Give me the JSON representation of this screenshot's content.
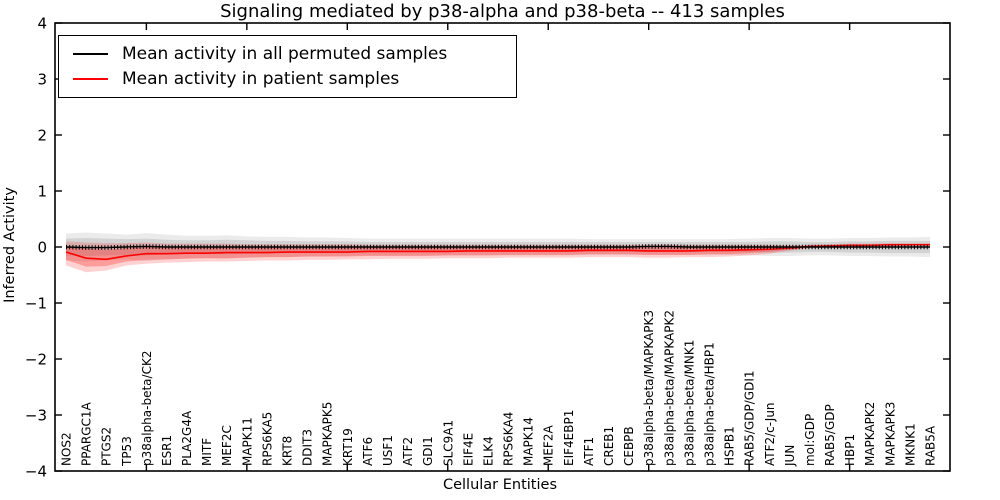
{
  "chart_data": {
    "type": "line",
    "title": "Signaling mediated by p38-alpha and p38-beta -- 413 samples",
    "xlabel": "Cellular Entities",
    "ylabel": "Inferred Activity",
    "ylim": [
      -4,
      4
    ],
    "grid": false,
    "legend_position": "upper left",
    "y_ticks": [
      {
        "value": 4,
        "label": "4"
      },
      {
        "value": 3,
        "label": "3"
      },
      {
        "value": 2,
        "label": "2"
      },
      {
        "value": 1,
        "label": "1"
      },
      {
        "value": 0,
        "label": "0"
      },
      {
        "value": -1,
        "label": "−1"
      },
      {
        "value": -2,
        "label": "−2"
      },
      {
        "value": -3,
        "label": "−3"
      },
      {
        "value": -4,
        "label": "−4"
      }
    ],
    "x_major_tick_indices": [
      4,
      9,
      14,
      19,
      24,
      29,
      34,
      39
    ],
    "categories": [
      "NOS2",
      "PPARGC1A",
      "PTGS2",
      "TP53",
      "p38alpha-beta/CK2",
      "ESR1",
      "PLA2G4A",
      "MITF",
      "MEF2C",
      "MAPK11",
      "RPS6KA5",
      "KRT8",
      "DDIT3",
      "MAPKAPK5",
      "KRT19",
      "ATF6",
      "USF1",
      "ATF2",
      "GDI1",
      "SLC9A1",
      "EIF4E",
      "ELK4",
      "RPS6KA4",
      "MAPK14",
      "MEF2A",
      "EIF4EBP1",
      "ATF1",
      "CREB1",
      "CEBPB",
      "p38alpha-beta/MAPKAPK3",
      "p38alpha-beta/MAPKAPK2",
      "p38alpha-beta/MNK1",
      "p38alpha-beta/HBP1",
      "HSPB1",
      "RAB5/GDP/GDI1",
      "ATF2/c-Jun",
      "JUN",
      "mol:GDP",
      "RAB5/GDP",
      "HBP1",
      "MAPKAPK2",
      "MAPKAPK3",
      "MKNK1",
      "RAB5A"
    ],
    "series": [
      {
        "name": "Mean activity in all permuted samples",
        "color": "#000000",
        "style": "line-with-dense-tick-markers",
        "values": [
          0.0,
          -0.01,
          -0.01,
          0.0,
          0.01,
          0.0,
          0.0,
          0.0,
          0.0,
          0.0,
          0.0,
          0.0,
          0.0,
          0.0,
          0.0,
          0.0,
          0.0,
          0.0,
          0.0,
          0.0,
          0.0,
          0.0,
          0.0,
          0.0,
          0.0,
          0.0,
          0.0,
          0.0,
          0.0,
          0.01,
          0.01,
          0.0,
          0.0,
          0.0,
          0.0,
          0.0,
          0.0,
          0.0,
          0.0,
          0.0,
          0.0,
          0.0,
          0.0,
          0.0
        ]
      },
      {
        "name": "Mean activity in patient samples",
        "color": "#ff0000",
        "style": "line",
        "values": [
          -0.09,
          -0.2,
          -0.22,
          -0.16,
          -0.12,
          -0.12,
          -0.11,
          -0.11,
          -0.1,
          -0.1,
          -0.1,
          -0.09,
          -0.09,
          -0.09,
          -0.09,
          -0.08,
          -0.08,
          -0.08,
          -0.08,
          -0.08,
          -0.07,
          -0.07,
          -0.07,
          -0.07,
          -0.07,
          -0.07,
          -0.06,
          -0.06,
          -0.06,
          -0.07,
          -0.07,
          -0.07,
          -0.06,
          -0.06,
          -0.05,
          -0.04,
          -0.02,
          0.01,
          0.02,
          0.03,
          0.03,
          0.04,
          0.04,
          0.04
        ]
      }
    ],
    "bands": [
      {
        "name": "permuted-outer",
        "color": "#000000",
        "opacity": 0.08,
        "upper": [
          0.24,
          0.26,
          0.24,
          0.22,
          0.25,
          0.22,
          0.2,
          0.2,
          0.21,
          0.19,
          0.18,
          0.18,
          0.17,
          0.17,
          0.16,
          0.15,
          0.15,
          0.15,
          0.15,
          0.15,
          0.15,
          0.15,
          0.15,
          0.15,
          0.15,
          0.15,
          0.14,
          0.14,
          0.14,
          0.14,
          0.14,
          0.14,
          0.14,
          0.14,
          0.15,
          0.16,
          0.16,
          0.15,
          0.15,
          0.16,
          0.16,
          0.17,
          0.17,
          0.18
        ],
        "lower": [
          -0.24,
          -0.26,
          -0.24,
          -0.22,
          -0.25,
          -0.22,
          -0.2,
          -0.2,
          -0.21,
          -0.19,
          -0.18,
          -0.18,
          -0.17,
          -0.17,
          -0.16,
          -0.15,
          -0.15,
          -0.15,
          -0.15,
          -0.15,
          -0.15,
          -0.15,
          -0.15,
          -0.15,
          -0.15,
          -0.15,
          -0.14,
          -0.14,
          -0.14,
          -0.14,
          -0.14,
          -0.14,
          -0.14,
          -0.14,
          -0.15,
          -0.16,
          -0.16,
          -0.15,
          -0.15,
          -0.16,
          -0.16,
          -0.17,
          -0.17,
          -0.18
        ]
      },
      {
        "name": "permuted-inner",
        "color": "#000000",
        "opacity": 0.1,
        "upper": [
          0.15,
          0.16,
          0.15,
          0.14,
          0.15,
          0.13,
          0.12,
          0.12,
          0.13,
          0.12,
          0.11,
          0.11,
          0.1,
          0.1,
          0.1,
          0.09,
          0.09,
          0.09,
          0.09,
          0.09,
          0.09,
          0.09,
          0.09,
          0.09,
          0.09,
          0.09,
          0.09,
          0.09,
          0.09,
          0.09,
          0.09,
          0.09,
          0.09,
          0.09,
          0.09,
          0.1,
          0.1,
          0.09,
          0.09,
          0.1,
          0.1,
          0.11,
          0.11,
          0.11
        ],
        "lower": [
          -0.15,
          -0.16,
          -0.15,
          -0.14,
          -0.15,
          -0.13,
          -0.12,
          -0.12,
          -0.13,
          -0.12,
          -0.11,
          -0.11,
          -0.1,
          -0.1,
          -0.1,
          -0.09,
          -0.09,
          -0.09,
          -0.09,
          -0.09,
          -0.09,
          -0.09,
          -0.09,
          -0.09,
          -0.09,
          -0.09,
          -0.09,
          -0.09,
          -0.09,
          -0.09,
          -0.09,
          -0.09,
          -0.09,
          -0.09,
          -0.09,
          -0.1,
          -0.1,
          -0.09,
          -0.09,
          -0.1,
          -0.1,
          -0.11,
          -0.11,
          -0.11
        ]
      },
      {
        "name": "patient-outer",
        "color": "#ff0000",
        "opacity": 0.18,
        "upper": [
          0.1,
          0.08,
          0.07,
          0.07,
          0.08,
          0.06,
          0.06,
          0.06,
          0.06,
          0.05,
          0.05,
          0.05,
          0.05,
          0.05,
          0.05,
          0.04,
          0.04,
          0.04,
          0.04,
          0.04,
          0.04,
          0.04,
          0.04,
          0.04,
          0.04,
          0.04,
          0.04,
          0.04,
          0.04,
          0.04,
          0.04,
          0.04,
          0.04,
          0.04,
          0.04,
          0.04,
          0.03,
          0.04,
          0.05,
          0.06,
          0.06,
          0.07,
          0.07,
          0.07
        ],
        "lower": [
          -0.33,
          -0.45,
          -0.42,
          -0.33,
          -0.3,
          -0.28,
          -0.27,
          -0.26,
          -0.26,
          -0.25,
          -0.24,
          -0.24,
          -0.23,
          -0.23,
          -0.22,
          -0.22,
          -0.21,
          -0.21,
          -0.21,
          -0.2,
          -0.2,
          -0.2,
          -0.19,
          -0.19,
          -0.19,
          -0.19,
          -0.18,
          -0.18,
          -0.18,
          -0.19,
          -0.19,
          -0.18,
          -0.18,
          -0.17,
          -0.15,
          -0.12,
          -0.07,
          -0.02,
          -0.01,
          0.0,
          0.01,
          0.01,
          0.02,
          0.02
        ]
      },
      {
        "name": "patient-inner",
        "color": "#ff0000",
        "opacity": 0.25,
        "upper": [
          0.02,
          -0.03,
          -0.05,
          -0.02,
          0.0,
          -0.01,
          -0.01,
          -0.01,
          0.0,
          -0.01,
          -0.01,
          0.0,
          0.0,
          0.0,
          0.0,
          0.0,
          0.0,
          0.0,
          0.0,
          0.0,
          0.0,
          0.0,
          0.0,
          0.0,
          0.0,
          0.0,
          0.0,
          0.0,
          0.0,
          0.0,
          0.0,
          0.0,
          0.0,
          0.0,
          0.0,
          0.0,
          0.0,
          0.02,
          0.03,
          0.04,
          0.04,
          0.05,
          0.05,
          0.05
        ],
        "lower": [
          -0.23,
          -0.35,
          -0.34,
          -0.26,
          -0.23,
          -0.22,
          -0.21,
          -0.2,
          -0.2,
          -0.19,
          -0.18,
          -0.18,
          -0.17,
          -0.17,
          -0.17,
          -0.16,
          -0.16,
          -0.16,
          -0.16,
          -0.15,
          -0.15,
          -0.15,
          -0.14,
          -0.14,
          -0.14,
          -0.14,
          -0.13,
          -0.13,
          -0.13,
          -0.14,
          -0.14,
          -0.14,
          -0.13,
          -0.13,
          -0.11,
          -0.09,
          -0.05,
          -0.01,
          0.0,
          0.01,
          0.02,
          0.02,
          0.03,
          0.03
        ]
      }
    ]
  }
}
